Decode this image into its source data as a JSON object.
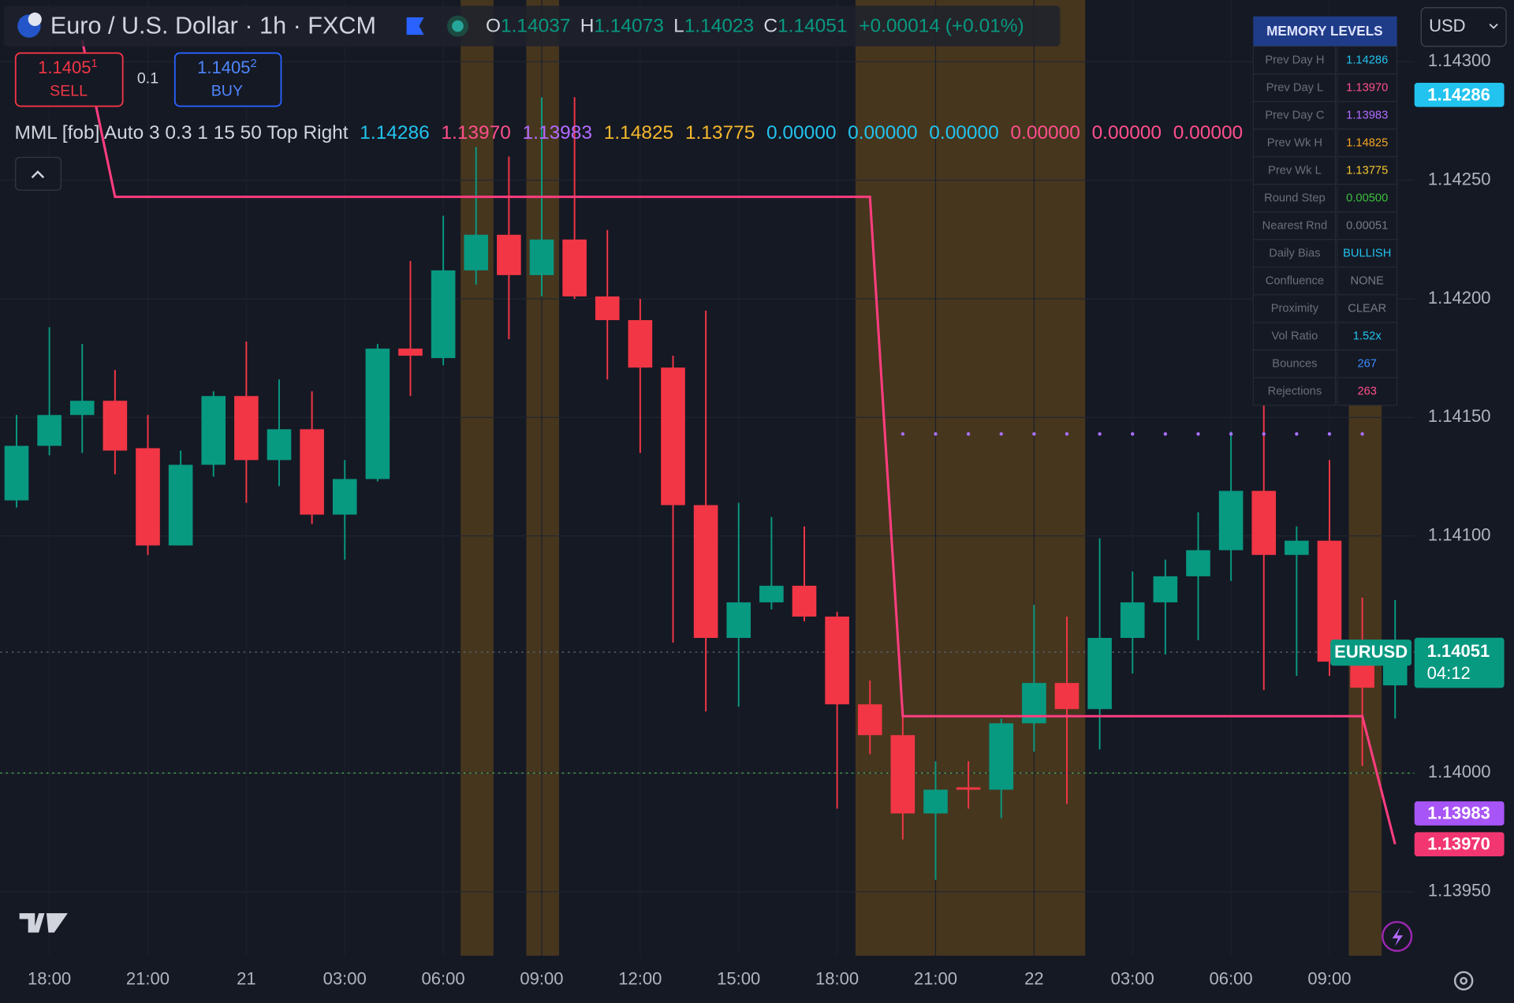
{
  "header": {
    "symbol": "Euro / U.S. Dollar · 1h · FXCM",
    "ohlc": [
      {
        "key": "O",
        "value": "1.14037"
      },
      {
        "key": "H",
        "value": "1.14073"
      },
      {
        "key": "L",
        "value": "1.14023"
      },
      {
        "key": "C",
        "value": "1.14051"
      }
    ],
    "change": "+0.00014 (+0.01%)"
  },
  "trade": {
    "sell_price": "1.1405",
    "sell_pip": "1",
    "sell": "SELL",
    "qty": "0.1",
    "buy_price": "1.1405",
    "buy_pip": "2",
    "buy": "BUY"
  },
  "indicator": {
    "name": "MML [fob] Auto 3 0.3 1 15 50 Top Right",
    "values": [
      {
        "text": "1.14286",
        "color": "#22c3ee"
      },
      {
        "text": "1.13970",
        "color": "#ff4f8b"
      },
      {
        "text": "1.13983",
        "color": "#b36bff"
      },
      {
        "text": "1.14825",
        "color": "#f5b82e"
      },
      {
        "text": "1.13775",
        "color": "#f5b82e"
      },
      {
        "text": "0.00000",
        "color": "#22c3ee"
      },
      {
        "text": "0.00000",
        "color": "#22c3ee"
      },
      {
        "text": "0.00000",
        "color": "#22c3ee"
      },
      {
        "text": "0.00000",
        "color": "#ff4f8b"
      },
      {
        "text": "0.00000",
        "color": "#ff4f8b"
      },
      {
        "text": "0.00000",
        "color": "#ff4f8b"
      }
    ]
  },
  "currency": "USD",
  "memory_table": {
    "title": "MEMORY LEVELS",
    "rows": [
      {
        "label": "Prev Day H",
        "value": "1.14286",
        "color": "#22c3ee"
      },
      {
        "label": "Prev Day L",
        "value": "1.13970",
        "color": "#ff4f8b"
      },
      {
        "label": "Prev Day C",
        "value": "1.13983",
        "color": "#b36bff"
      },
      {
        "label": "Prev Wk H",
        "value": "1.14825",
        "color": "#f5a623"
      },
      {
        "label": "Prev Wk L",
        "value": "1.13775",
        "color": "#f5c52e"
      },
      {
        "label": "Round Step",
        "value": "0.00500",
        "color": "#3cc13b"
      },
      {
        "label": "Nearest Rnd",
        "value": "0.00051",
        "color": "#787b86"
      },
      {
        "label": "Daily Bias",
        "value": "BULLISH",
        "color": "#22c3ee"
      },
      {
        "label": "Confluence",
        "value": "NONE",
        "color": "#787b86"
      },
      {
        "label": "Proximity",
        "value": "CLEAR",
        "color": "#787b86"
      },
      {
        "label": "Vol Ratio",
        "value": "1.52x",
        "color": "#22c3ee"
      },
      {
        "label": "Bounces",
        "value": "267",
        "color": "#3b8cff"
      },
      {
        "label": "Rejections",
        "value": "263",
        "color": "#ff4f8b"
      }
    ]
  },
  "chart_data": {
    "type": "candlestick",
    "categories": [
      null,
      "18:00",
      null,
      null,
      "21:00",
      null,
      null,
      "21",
      null,
      null,
      "03:00",
      null,
      null,
      "06:00",
      null,
      null,
      "09:00",
      null,
      null,
      "12:00",
      null,
      null,
      "15:00",
      null,
      null,
      "18:00",
      null,
      null,
      "21:00",
      null,
      null,
      "22",
      null,
      null,
      "03:00",
      null,
      null,
      "06:00",
      null,
      null,
      "09:00",
      null,
      null
    ],
    "open": [
      1.14115,
      1.14138,
      1.14151,
      1.14157,
      1.14137,
      1.14096,
      1.1413,
      1.14159,
      1.14132,
      1.14145,
      1.14109,
      1.14124,
      1.14179,
      1.14175,
      1.14212,
      1.14227,
      1.1421,
      1.14225,
      1.14201,
      1.14191,
      1.14171,
      1.14113,
      1.14057,
      1.14072,
      1.14079,
      1.14066,
      1.14029,
      1.14016,
      1.13983,
      1.13994,
      1.13993,
      1.14021,
      1.14038,
      1.14027,
      1.14057,
      1.14072,
      1.14083,
      1.14094,
      1.14119,
      1.14092,
      1.14098,
      1.14047,
      1.14037
    ],
    "high": [
      1.14151,
      1.14188,
      1.14181,
      1.1417,
      1.14151,
      1.14136,
      1.14161,
      1.14182,
      1.14166,
      1.14161,
      1.14132,
      1.14181,
      1.14216,
      1.14235,
      1.14264,
      1.1426,
      1.14285,
      1.14285,
      1.14229,
      1.142,
      1.14176,
      1.14195,
      1.14114,
      1.14108,
      1.14104,
      1.14068,
      1.14039,
      1.14026,
      1.14005,
      1.14005,
      1.14023,
      1.14071,
      1.14066,
      1.14099,
      1.14085,
      1.1409,
      1.1411,
      1.14144,
      1.14195,
      1.14104,
      1.14132,
      1.14074,
      1.14073
    ],
    "low": [
      1.14112,
      1.14134,
      1.14135,
      1.14126,
      1.14092,
      1.14096,
      1.14125,
      1.14114,
      1.14121,
      1.14105,
      1.1409,
      1.14123,
      1.14159,
      1.14172,
      1.14206,
      1.14183,
      1.14201,
      1.142,
      1.14166,
      1.14135,
      1.14055,
      1.14026,
      1.14028,
      1.14069,
      1.14064,
      1.13985,
      1.14008,
      1.13972,
      1.13955,
      1.13985,
      1.13981,
      1.14009,
      1.13987,
      1.1401,
      1.14042,
      1.1405,
      1.14056,
      1.14081,
      1.14035,
      1.14041,
      1.14041,
      1.14003,
      1.14023
    ],
    "close": [
      1.14138,
      1.14151,
      1.14157,
      1.14136,
      1.14096,
      1.1413,
      1.14159,
      1.14132,
      1.14145,
      1.14109,
      1.14124,
      1.14179,
      1.14176,
      1.14212,
      1.14227,
      1.1421,
      1.14225,
      1.14201,
      1.14191,
      1.14171,
      1.14113,
      1.14057,
      1.14072,
      1.14079,
      1.14066,
      1.14029,
      1.14016,
      1.13983,
      1.13993,
      1.13993,
      1.14021,
      1.14038,
      1.14027,
      1.14057,
      1.14072,
      1.14083,
      1.14094,
      1.14119,
      1.14092,
      1.14098,
      1.14047,
      1.14036,
      1.14051
    ],
    "up_color": "#089981",
    "down_color": "#f23645",
    "ylim": [
      1.13923,
      1.14326
    ],
    "yticks": [
      {
        "value": 1.143,
        "label": "1.14300"
      },
      {
        "value": 1.1425,
        "label": "1.14250"
      },
      {
        "value": 1.142,
        "label": "1.14200"
      },
      {
        "value": 1.1415,
        "label": "1.14150"
      },
      {
        "value": 1.141,
        "label": "1.14100"
      },
      {
        "value": 1.14,
        "label": "1.14000"
      },
      {
        "value": 1.1395,
        "label": "1.13950"
      }
    ],
    "grid": true,
    "step_line": {
      "color": "#ff3d7f",
      "values": [
        null,
        null,
        1.14309,
        1.14243,
        1.14243,
        1.14243,
        1.14243,
        1.14243,
        1.14243,
        1.14243,
        1.14243,
        1.14243,
        1.14243,
        1.14243,
        1.14243,
        1.14243,
        1.14243,
        1.14243,
        1.14243,
        1.14243,
        1.14243,
        1.14243,
        1.14243,
        1.14243,
        1.14243,
        1.14243,
        1.14243,
        1.14024,
        1.14024,
        1.14024,
        1.14024,
        1.14024,
        1.14024,
        1.14024,
        1.14024,
        1.14024,
        1.14024,
        1.14024,
        1.14024,
        1.14024,
        1.14024,
        1.14024,
        1.1397
      ]
    },
    "dot_line": {
      "color": "#a970ff",
      "values": [
        null,
        null,
        null,
        null,
        null,
        null,
        null,
        null,
        null,
        null,
        null,
        null,
        null,
        null,
        null,
        null,
        null,
        null,
        null,
        null,
        null,
        null,
        null,
        null,
        null,
        null,
        null,
        1.14143,
        1.14143,
        1.14143,
        1.14143,
        1.14143,
        1.14143,
        1.14143,
        1.14143,
        1.14143,
        1.14143,
        1.14143,
        1.14143,
        1.14143,
        1.14143,
        1.14143,
        null
      ]
    },
    "round_level": {
      "value": 1.14,
      "color": "#4caf50"
    },
    "price_labels": [
      {
        "value": 1.14286,
        "label": "1.14286",
        "color": "#22c3ee"
      },
      {
        "value": 1.13983,
        "label": "1.13983",
        "color": "#a855f7"
      },
      {
        "value": 1.1397,
        "label": "1.13970",
        "color": "#f23672"
      }
    ],
    "last_price": {
      "symbol": "EURUSD",
      "countdown": "04:12"
    }
  }
}
